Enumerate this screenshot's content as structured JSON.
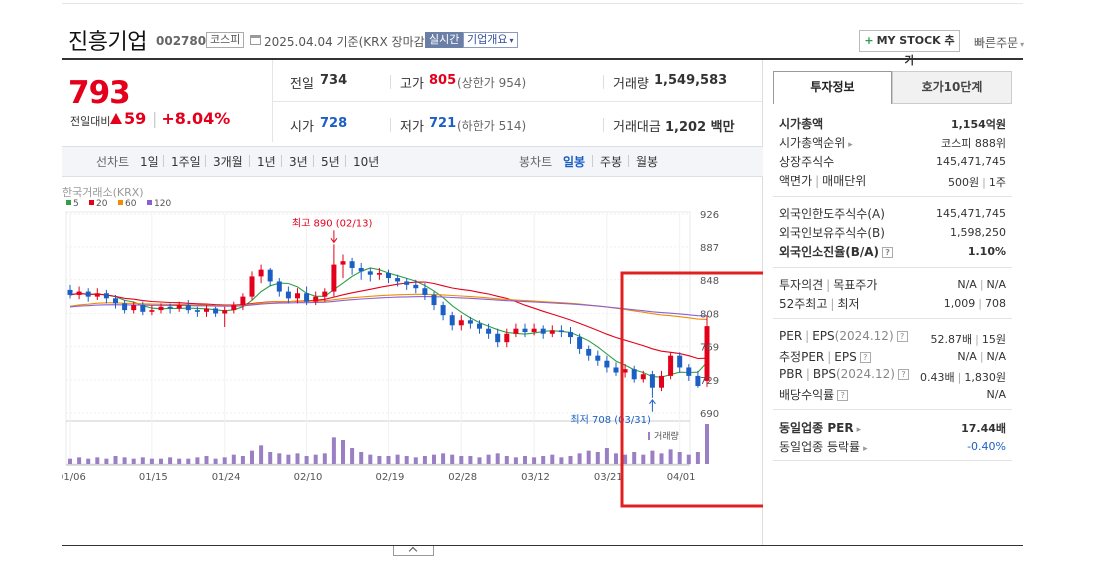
{
  "header": {
    "stock_name": "진흥기업",
    "stock_code": "002780",
    "market": "코스피",
    "as_of": "2025.04.04  기준(KRX 장마감)",
    "realtime_label": "실시간",
    "company_info_label": "기업개요",
    "my_stock_label": "MY STOCK 추가",
    "quick_order_label": "빠른주문"
  },
  "summary": {
    "price": "793",
    "change_label": "전일대비",
    "change": "59",
    "change_pct": "+8.04%",
    "prev_close_label": "전일",
    "prev_close": "734",
    "high_label": "고가",
    "high": "805",
    "upper_limit": "(상한가 954)",
    "volume_label": "거래량",
    "volume": "1,549,583",
    "open_label": "시가",
    "open": "728",
    "low_label": "저가",
    "low": "721",
    "lower_limit": "(하한가 514)",
    "amount_label": "거래대금",
    "amount": "1,202",
    "amount_unit": "백만"
  },
  "period_bar": {
    "line_chart_label": "선차트",
    "line_periods": [
      "1일",
      "1주일",
      "3개월",
      "1년",
      "3년",
      "5년",
      "10년"
    ],
    "candle_label": "봉차트",
    "candle_periods": [
      "일봉",
      "주봉",
      "월봉"
    ],
    "selected_candle": "일봉"
  },
  "chart_data": {
    "type": "candlestick",
    "source": "한국거래소(KRX)",
    "ma_legend": [
      {
        "name": "5",
        "color": "#2ea043"
      },
      {
        "name": "20",
        "color": "#e4001b"
      },
      {
        "name": "60",
        "color": "#f08c00"
      },
      {
        "name": "120",
        "color": "#8b5fd6"
      }
    ],
    "y_ticks": [
      "926",
      "887",
      "848",
      "808",
      "769",
      "729",
      "690"
    ],
    "ylim": [
      690,
      926
    ],
    "x_ticks": [
      "01/06",
      "01/15",
      "01/24",
      "02/10",
      "02/19",
      "02/28",
      "03/12",
      "03/21",
      "04/01"
    ],
    "high_annotation": "최고 890 (02/13)",
    "low_annotation": "최저 708 (03/31)",
    "volume_label": "거래량",
    "up_color": "#e4001b",
    "down_color": "#1b5fc5",
    "volume_color": "#9b7fc4",
    "candles": [
      [
        836,
        830,
        842,
        826
      ],
      [
        830,
        834,
        840,
        825
      ],
      [
        834,
        828,
        838,
        822
      ],
      [
        828,
        832,
        838,
        824
      ],
      [
        832,
        826,
        836,
        820
      ],
      [
        826,
        820,
        830,
        814
      ],
      [
        820,
        812,
        824,
        808
      ],
      [
        812,
        818,
        822,
        808
      ],
      [
        818,
        810,
        822,
        806
      ],
      [
        810,
        812,
        818,
        806
      ],
      [
        812,
        816,
        820,
        808
      ],
      [
        816,
        814,
        820,
        808
      ],
      [
        814,
        818,
        822,
        810
      ],
      [
        818,
        812,
        824,
        808
      ],
      [
        812,
        810,
        816,
        804
      ],
      [
        810,
        814,
        818,
        804
      ],
      [
        814,
        808,
        816,
        804
      ],
      [
        808,
        812,
        816,
        792
      ],
      [
        812,
        818,
        822,
        808
      ],
      [
        818,
        828,
        832,
        812
      ],
      [
        828,
        852,
        858,
        824
      ],
      [
        852,
        860,
        866,
        844
      ],
      [
        860,
        846,
        862,
        840
      ],
      [
        846,
        834,
        850,
        828
      ],
      [
        834,
        826,
        840,
        820
      ],
      [
        826,
        832,
        838,
        820
      ],
      [
        832,
        822,
        840,
        818
      ],
      [
        822,
        828,
        834,
        818
      ],
      [
        828,
        834,
        838,
        822
      ],
      [
        834,
        866,
        890,
        828
      ],
      [
        866,
        870,
        878,
        850
      ],
      [
        870,
        862,
        874,
        854
      ],
      [
        862,
        858,
        868,
        848
      ],
      [
        858,
        854,
        862,
        846
      ],
      [
        854,
        856,
        862,
        848
      ],
      [
        856,
        850,
        860,
        844
      ],
      [
        850,
        846,
        854,
        840
      ],
      [
        846,
        842,
        850,
        836
      ],
      [
        842,
        838,
        848,
        832
      ],
      [
        838,
        830,
        844,
        824
      ],
      [
        830,
        818,
        834,
        812
      ],
      [
        818,
        806,
        822,
        800
      ],
      [
        806,
        794,
        810,
        788
      ],
      [
        794,
        800,
        806,
        788
      ],
      [
        800,
        796,
        804,
        790
      ],
      [
        796,
        790,
        800,
        784
      ],
      [
        790,
        784,
        796,
        778
      ],
      [
        784,
        774,
        790,
        768
      ],
      [
        774,
        784,
        790,
        768
      ],
      [
        784,
        790,
        796,
        780
      ],
      [
        790,
        786,
        796,
        780
      ],
      [
        786,
        790,
        796,
        782
      ],
      [
        790,
        784,
        794,
        778
      ],
      [
        784,
        788,
        794,
        780
      ],
      [
        788,
        786,
        794,
        780
      ],
      [
        786,
        780,
        792,
        772
      ],
      [
        780,
        766,
        784,
        760
      ],
      [
        766,
        758,
        770,
        752
      ],
      [
        758,
        752,
        764,
        746
      ],
      [
        752,
        744,
        758,
        738
      ],
      [
        744,
        738,
        750,
        734
      ],
      [
        738,
        742,
        748,
        732
      ],
      [
        742,
        730,
        746,
        726
      ],
      [
        730,
        736,
        740,
        726
      ],
      [
        736,
        720,
        740,
        708
      ],
      [
        720,
        734,
        740,
        716
      ],
      [
        734,
        758,
        762,
        730
      ],
      [
        758,
        744,
        762,
        738
      ],
      [
        744,
        734,
        748,
        728
      ],
      [
        734,
        722,
        740,
        720
      ],
      [
        728,
        793,
        805,
        721
      ]
    ],
    "volumes": [
      4,
      5,
      4,
      5,
      4,
      6,
      5,
      4,
      5,
      4,
      4,
      5,
      4,
      4,
      5,
      6,
      4,
      5,
      7,
      6,
      10,
      14,
      9,
      8,
      7,
      8,
      6,
      7,
      8,
      20,
      18,
      12,
      9,
      7,
      6,
      6,
      7,
      6,
      5,
      6,
      7,
      8,
      7,
      6,
      6,
      5,
      7,
      8,
      6,
      5,
      6,
      5,
      6,
      7,
      5,
      6,
      8,
      10,
      9,
      12,
      8,
      7,
      9,
      7,
      10,
      8,
      11,
      9,
      7,
      9,
      30
    ]
  },
  "invest_tabs": {
    "tab1": "투자정보",
    "tab2": "호가10단계"
  },
  "invest": {
    "mcap_label": "시가총액",
    "mcap": "1,154억원",
    "mcap_rank_label": "시가총액순위",
    "mcap_rank": "코스피 888위",
    "shares_label": "상장주식수",
    "shares": "145,471,745",
    "par_label": "액면가",
    "lot_label": "매매단위",
    "par": "500원",
    "lot": "1주",
    "foreign_limit_label": "외국인한도주식수(A)",
    "foreign_limit": "145,471,745",
    "foreign_hold_label": "외국인보유주식수(B)",
    "foreign_hold": "1,598,250",
    "foreign_ratio_label": "외국인소진율(B/A)",
    "foreign_ratio": "1.10%",
    "opinion_label": "투자의견",
    "target_label": "목표주가",
    "opinion": "N/A",
    "target": "N/A",
    "w52_high_label": "52주최고",
    "w52_low_label": "최저",
    "w52_high": "1,009",
    "w52_low": "708",
    "per_label": "PER",
    "eps_label": "EPS",
    "per_eps_period": "(2024.12)",
    "per": "52.87배",
    "eps": "15원",
    "est_per_label": "추정PER",
    "est_eps_label": "EPS",
    "est_per": "N/A",
    "est_eps": "N/A",
    "pbr_label": "PBR",
    "bps_label": "BPS",
    "pbr_bps_period": "(2024.12)",
    "pbr": "0.43배",
    "bps": "1,830원",
    "div_label": "배당수익률",
    "div": "N/A",
    "ind_per_label": "동일업종 PER",
    "ind_per": "17.44배",
    "ind_rate_label": "동일업종 등락률",
    "ind_rate": "-0.40%"
  }
}
